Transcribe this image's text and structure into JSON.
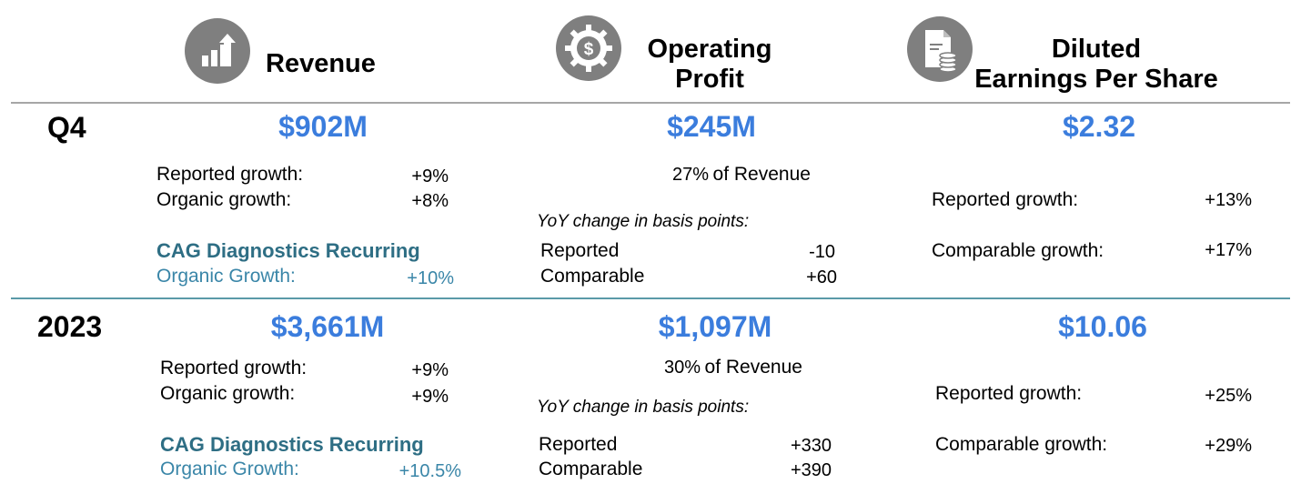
{
  "headers": {
    "revenue": {
      "title": "Revenue",
      "icon": "bar-chart-growth-icon"
    },
    "operating_profit": {
      "line1": "Operating",
      "line2": "Profit",
      "icon": "gear-dollar-icon"
    },
    "eps": {
      "line1": "Diluted",
      "line2": "Earnings Per Share",
      "icon": "document-coins-icon"
    }
  },
  "colors": {
    "value_blue": "#3b7ddd",
    "teal": "#2e6e84",
    "rule_gray": "#a6a6a6",
    "rule_teal": "#5a9aa8",
    "icon_gray": "#7f7f7f"
  },
  "q4": {
    "label": "Q4",
    "revenue": {
      "value": "$902M",
      "reported_label": "Reported growth:",
      "reported": "+9%",
      "organic_label": "Organic growth:",
      "organic": "+8%",
      "cag_title": "CAG Diagnostics Recurring",
      "cag_label": "Organic Growth:",
      "cag_value": "+10%"
    },
    "op_profit": {
      "value": "$245M",
      "pct": "27%",
      "pct_label": "of Revenue",
      "yoy_label": "YoY change in basis points:",
      "reported_label": "Reported",
      "reported": "-10",
      "comparable_label": "Comparable",
      "comparable": "+60"
    },
    "eps": {
      "value": "$2.32",
      "reported_label": "Reported growth:",
      "reported": "+13%",
      "comparable_label": "Comparable growth:",
      "comparable": "+17%"
    }
  },
  "y2023": {
    "label": "2023",
    "revenue": {
      "value": "$3,661M",
      "reported_label": "Reported growth:",
      "reported": "+9%",
      "organic_label": "Organic growth:",
      "organic": "+9%",
      "cag_title": "CAG Diagnostics Recurring",
      "cag_label": "Organic Growth:",
      "cag_value": "+10.5%"
    },
    "op_profit": {
      "value": "$1,097M",
      "pct": "30%",
      "pct_label": "of Revenue",
      "yoy_label": "YoY change in basis points:",
      "reported_label": "Reported",
      "reported": "+330",
      "comparable_label": "Comparable",
      "comparable": "+390"
    },
    "eps": {
      "value": "$10.06",
      "reported_label": "Reported growth:",
      "reported": "+25%",
      "comparable_label": "Comparable growth:",
      "comparable": "+29%"
    }
  }
}
